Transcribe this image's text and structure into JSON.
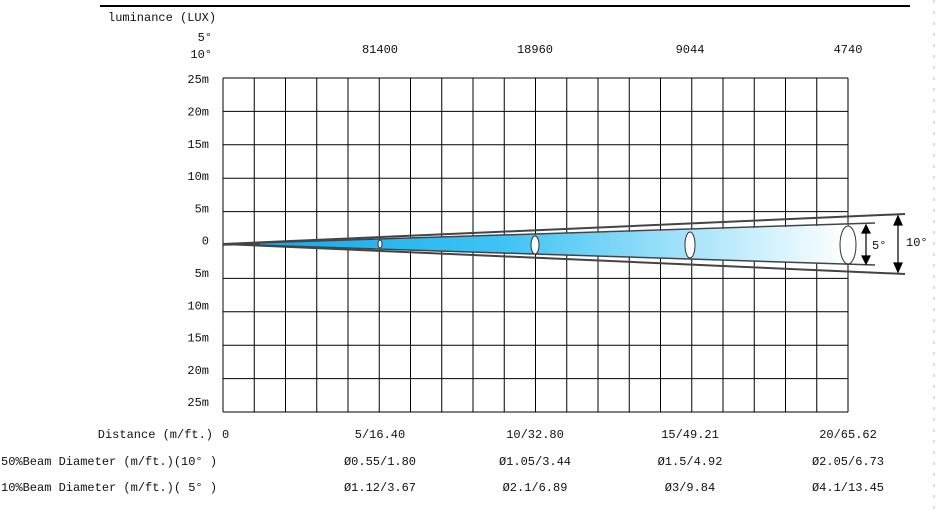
{
  "header": {
    "title": "luminance (LUX)",
    "angles": [
      "5°",
      "10°"
    ],
    "lux": [
      "81400",
      "18960",
      "9044",
      "4740"
    ]
  },
  "y_labels": [
    "25m",
    "20m",
    "15m",
    "10m",
    "5m",
    "0",
    "5m",
    "10m",
    "15m",
    "20m",
    "25m"
  ],
  "rows": [
    {
      "label": "Distance (m/ft.)",
      "values": [
        "0",
        "5/16.40",
        "10/32.80",
        "15/49.21",
        "20/65.62"
      ]
    },
    {
      "label": "50%Beam Diameter (m/ft.)(10° )",
      "values": [
        "Ø0.55/1.80",
        "Ø1.05/3.44",
        "Ø1.5/4.92",
        "Ø2.05/6.73"
      ]
    },
    {
      "label": "10%Beam Diameter (m/ft.)( 5° )",
      "values": [
        "Ø1.12/3.67",
        "Ø2.1/6.89",
        "Ø3/9.84",
        "Ø4.1/13.45"
      ]
    }
  ],
  "beam_labels": [
    "5°",
    "10°"
  ]
}
